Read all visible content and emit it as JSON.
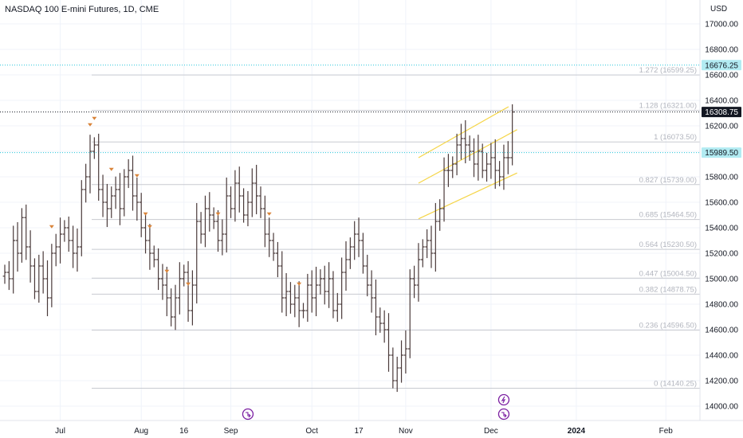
{
  "header": {
    "title": "NASDAQ 100 E-mini Futures, 1D, CME",
    "currency": "USD"
  },
  "colors": {
    "bar": "#4a3a3a",
    "grid": "#f0f3fa",
    "fib_line": "#c8cad0",
    "channel": "#f5d547",
    "marker": "#d9843a",
    "last_price_bg": "#131722",
    "level_bg": "#b2ebf2",
    "level_line": "#26c6da",
    "event_icon": "#7b1fa2"
  },
  "chart_data": {
    "type": "ohlc",
    "title": "NASDAQ 100 E-mini Futures, 1D, CME",
    "ylim": [
      13950,
      17200
    ],
    "y_ticks": [
      14000,
      14200,
      14400,
      14600,
      14800,
      15000,
      15200,
      15400,
      15600,
      15800,
      16000,
      16200,
      16400,
      16600,
      16800,
      17000
    ],
    "y_tick_labels": [
      "14000.00",
      "14200.00",
      "14400.00",
      "14600.00",
      "14800.00",
      "15000.00",
      "15200.00",
      "15400.00",
      "15600.00",
      "15800.00",
      "16000.00",
      "16200.00",
      "16400.00",
      "16600.00",
      "16800.00",
      "17000.00"
    ],
    "x_labels": [
      {
        "label": "Jul",
        "bar": 13
      },
      {
        "label": "Aug",
        "bar": 32
      },
      {
        "label": "16",
        "bar": 42
      },
      {
        "label": "Sep",
        "bar": 53
      },
      {
        "label": "Oct",
        "bar": 72
      },
      {
        "label": "17",
        "bar": 83
      },
      {
        "label": "Nov",
        "bar": 94
      },
      {
        "label": "Dec",
        "bar": 114
      },
      {
        "label": "2024",
        "bar": 134
      },
      {
        "label": "Feb",
        "bar": 155
      }
    ],
    "bars_close": [
      15050,
      15000,
      15300,
      15200,
      15480,
      15250,
      15100,
      14900,
      15100,
      15000,
      14850,
      15200,
      15250,
      15350,
      15400,
      15300,
      15200,
      15250,
      15700,
      15800,
      16000,
      16050,
      15700,
      15600,
      15550,
      15650,
      15700,
      15550,
      15800,
      15850,
      15650,
      15600,
      15400,
      15300,
      15200,
      15150,
      15000,
      14950,
      14850,
      14700,
      14850,
      15000,
      15050,
      14750,
      14950,
      15450,
      15350,
      15550,
      15500,
      15450,
      15300,
      15350,
      15650,
      15550,
      15750,
      15650,
      15500,
      15600,
      15750,
      15650,
      15550,
      15350,
      15300,
      15200,
      15100,
      14850,
      14900,
      14800,
      14850,
      14750,
      14750,
      14950,
      14850,
      14950,
      15000,
      14900,
      15000,
      14750,
      14800,
      15050,
      15150,
      15250,
      15350,
      15300,
      15100,
      14950,
      14850,
      14700,
      14650,
      14600,
      14400,
      14200,
      14300,
      14400,
      14450,
      15000,
      14950,
      15150,
      15250,
      15300,
      15200,
      15450,
      15550,
      15850,
      15850,
      15900,
      16050,
      16100,
      16050,
      16000,
      15900,
      16000,
      15850,
      15900,
      15950,
      15850,
      15800,
      15950,
      15950,
      16308.75
    ],
    "last_price": {
      "value": 16308.75,
      "label": "16308.75"
    },
    "price_levels": [
      {
        "value": 16676.25,
        "label": "16676.25"
      },
      {
        "value": 15989.5,
        "label": "15989.50"
      }
    ],
    "fib_levels": [
      {
        "ratio": "1.272",
        "value": 16599.25,
        "label": "1.272 (16599.25)"
      },
      {
        "ratio": "1.128",
        "value": 16321.0,
        "label": "1.128 (16321.00)"
      },
      {
        "ratio": "1",
        "value": 16073.5,
        "label": "1 (16073.50)"
      },
      {
        "ratio": "0.827",
        "value": 15739.0,
        "label": "0.827 (15739.00)"
      },
      {
        "ratio": "0.685",
        "value": 15464.5,
        "label": "0.685 (15464.50)"
      },
      {
        "ratio": "0.564",
        "value": 15230.5,
        "label": "0.564 (15230.50)"
      },
      {
        "ratio": "0.447",
        "value": 15004.5,
        "label": "0.447 (15004.50)"
      },
      {
        "ratio": "0.382",
        "value": 14878.75,
        "label": "0.382 (14878.75)"
      },
      {
        "ratio": "0.236",
        "value": 14596.5,
        "label": "0.236 (14596.50)"
      },
      {
        "ratio": "0",
        "value": 14140.25,
        "label": "0 (14140.25)"
      }
    ],
    "fib_start_bar": 20,
    "channel_lines": [
      {
        "bar1": 97,
        "price1": 15950,
        "bar2": 117,
        "price2": 16350
      },
      {
        "bar1": 97,
        "price1": 15750,
        "bar2": 119,
        "price2": 16170
      },
      {
        "bar1": 97,
        "price1": 15470,
        "bar2": 119,
        "price2": 15830
      }
    ],
    "pattern_marker_bars": [
      11,
      20,
      21,
      25,
      31,
      33,
      34,
      38,
      43,
      50,
      62,
      69
    ],
    "event_icons": [
      {
        "bar": 57,
        "type": "split"
      },
      {
        "bar": 117,
        "type": "dividend"
      },
      {
        "bar": 117,
        "type": "split"
      }
    ]
  }
}
